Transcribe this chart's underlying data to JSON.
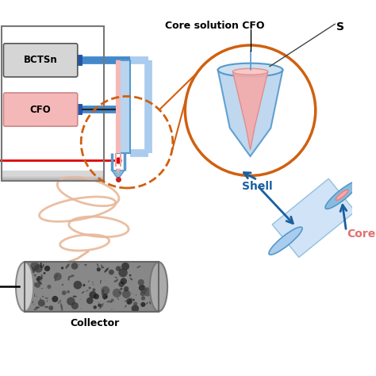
{
  "bg_color": "#ffffff",
  "box_bctsn_label": "BCTSn",
  "box_cfo_label": "CFO",
  "collector_label": "Collector",
  "core_solution_label": "Core solution CFO",
  "shell_label": "Shell",
  "core_label": "Core",
  "needle_blue_color": "#4488cc",
  "needle_pink_color": "#f5b8b8",
  "box_gray_dark": "#999999",
  "box_gray_light": "#cccccc",
  "box_bctsn_bg": "#d8d8d8",
  "box_cfo_bg": "#f5b8b8",
  "orange_circle_color": "#d06010",
  "red_line_color": "#dd0000",
  "spin_fiber_color": "#e8b898",
  "arrow_color": "#1a5fa0",
  "label_shell_color": "#1a5fa0",
  "label_core_color": "#e07070",
  "outer_shell_blue": "#aaccee",
  "inner_core_pink": "#f5aaaa",
  "S_label": "S",
  "nozzle_blue": "#5599cc",
  "nozzle_pink": "#f0b0b0"
}
